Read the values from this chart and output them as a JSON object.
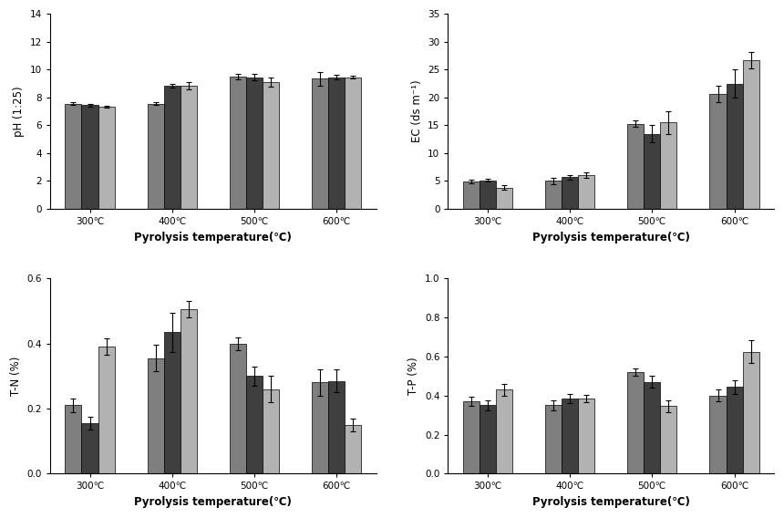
{
  "temperatures": [
    "300℃",
    "400℃",
    "500℃",
    "600℃"
  ],
  "bar_colors": [
    "#7f7f7f",
    "#3f3f3f",
    "#b2b2b2"
  ],
  "bar_width": 0.2,
  "pH": {
    "values": [
      [
        7.55,
        7.45,
        7.35
      ],
      [
        7.55,
        8.85,
        8.85
      ],
      [
        9.5,
        9.45,
        9.1
      ],
      [
        9.35,
        9.45,
        9.45
      ]
    ],
    "errors": [
      [
        0.1,
        0.1,
        0.08
      ],
      [
        0.08,
        0.15,
        0.28
      ],
      [
        0.18,
        0.22,
        0.32
      ],
      [
        0.48,
        0.18,
        0.12
      ]
    ],
    "ylabel": "pH (1:25)",
    "ylim": [
      0,
      14
    ],
    "yticks": [
      0,
      2,
      4,
      6,
      8,
      10,
      12,
      14
    ]
  },
  "EC": {
    "values": [
      [
        4.9,
        5.15,
        3.8
      ],
      [
        5.0,
        5.7,
        6.1
      ],
      [
        15.3,
        13.5,
        15.5
      ],
      [
        20.6,
        22.5,
        26.7
      ]
    ],
    "errors": [
      [
        0.3,
        0.3,
        0.4
      ],
      [
        0.5,
        0.4,
        0.5
      ],
      [
        0.5,
        1.5,
        2.0
      ],
      [
        1.5,
        2.5,
        1.5
      ]
    ],
    "ylabel": "EC (ds m⁻¹)",
    "ylim": [
      0,
      35
    ],
    "yticks": [
      0,
      5,
      10,
      15,
      20,
      25,
      30,
      35
    ]
  },
  "TN": {
    "values": [
      [
        0.21,
        0.155,
        0.39
      ],
      [
        0.355,
        0.435,
        0.505
      ],
      [
        0.4,
        0.3,
        0.26
      ],
      [
        0.28,
        0.285,
        0.15
      ]
    ],
    "errors": [
      [
        0.02,
        0.02,
        0.025
      ],
      [
        0.04,
        0.06,
        0.025
      ],
      [
        0.02,
        0.03,
        0.04
      ],
      [
        0.04,
        0.035,
        0.02
      ]
    ],
    "ylabel": "T-N (%)",
    "ylim": [
      0,
      0.6
    ],
    "yticks": [
      0,
      0.2,
      0.4,
      0.6
    ]
  },
  "TP": {
    "values": [
      [
        0.37,
        0.35,
        0.43
      ],
      [
        0.35,
        0.385,
        0.385
      ],
      [
        0.52,
        0.47,
        0.345
      ],
      [
        0.4,
        0.445,
        0.625
      ]
    ],
    "errors": [
      [
        0.025,
        0.025,
        0.03
      ],
      [
        0.025,
        0.025,
        0.02
      ],
      [
        0.02,
        0.03,
        0.03
      ],
      [
        0.03,
        0.035,
        0.06
      ]
    ],
    "ylabel": "T-P (%)",
    "ylim": [
      0,
      1.0
    ],
    "yticks": [
      0,
      0.2,
      0.4,
      0.6,
      0.8,
      1.0
    ]
  },
  "xlabel": "Pyrolysis temperature(℃)",
  "background_color": "#ffffff",
  "tick_fontsize": 7.5,
  "label_fontsize": 8.5,
  "xlabel_fontsize": 8.5,
  "capsize": 2.5
}
